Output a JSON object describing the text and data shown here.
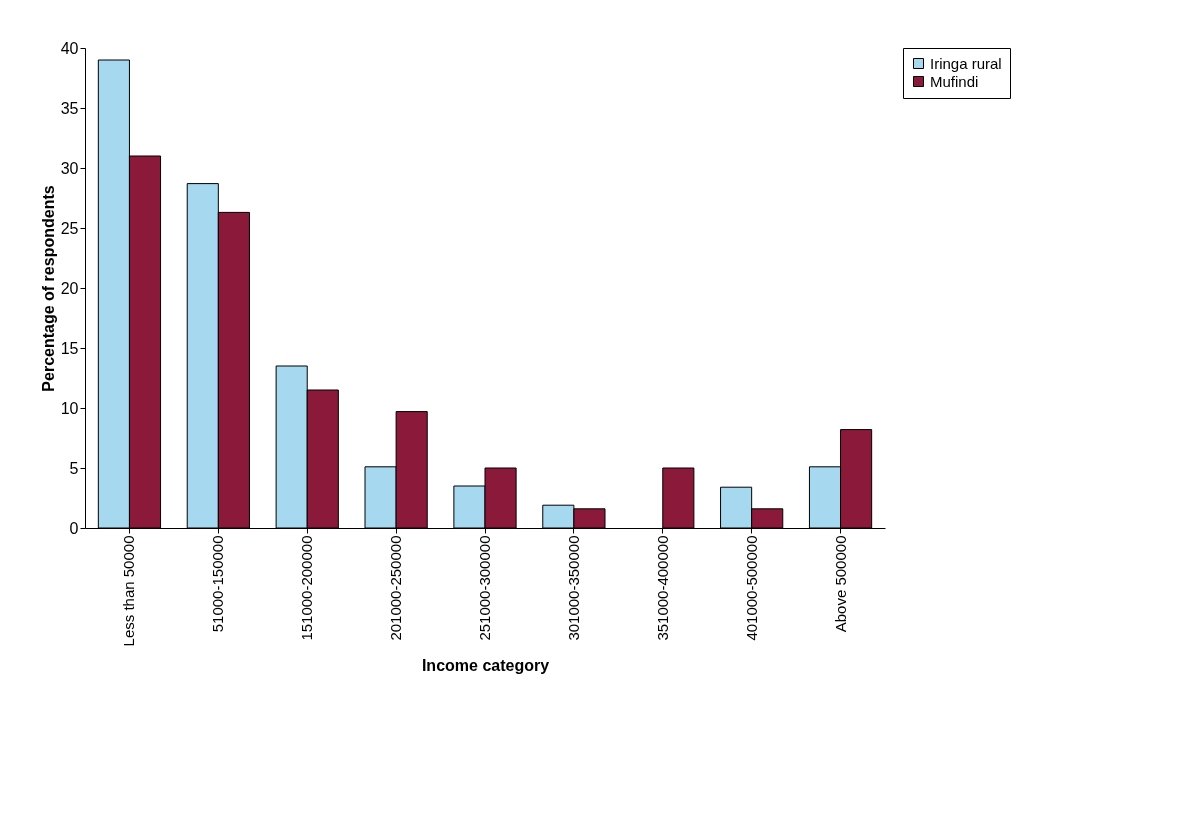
{
  "chart_data": {
    "type": "bar",
    "xlabel": "Income category",
    "ylabel": "Percentage of respondents",
    "categories": [
      "Less than 50000",
      "51000-150000",
      "151000-200000",
      "201000-250000",
      "251000-300000",
      "301000-350000",
      "351000-400000",
      "401000-500000",
      "Above 500000"
    ],
    "series": [
      {
        "name": "Iringa rural",
        "color": "#a6d8f0",
        "values": [
          39,
          28.7,
          13.5,
          5.1,
          3.5,
          1.9,
          null,
          3.4,
          5.1
        ]
      },
      {
        "name": "Mufindi",
        "color": "#8b1a3a",
        "values": [
          31,
          26.3,
          11.5,
          9.7,
          5,
          1.6,
          5,
          1.6,
          8.2
        ]
      }
    ],
    "ylim": [
      0,
      40
    ],
    "yticks": [
      0,
      5,
      10,
      15,
      20,
      25,
      30,
      35,
      40
    ],
    "grid": false,
    "legend": "right"
  }
}
